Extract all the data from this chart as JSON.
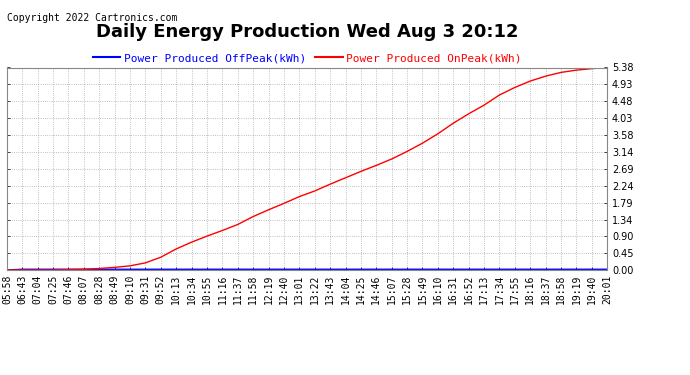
{
  "title": "Daily Energy Production Wed Aug 3 20:12",
  "copyright": "Copyright 2022 Cartronics.com",
  "legend_offpeak": "Power Produced OffPeak(kWh)",
  "legend_onpeak": "Power Produced OnPeak(kWh)",
  "color_offpeak": "#0000ff",
  "color_onpeak": "#ff0000",
  "bg_color": "#ffffff",
  "grid_color": "#aaaaaa",
  "ymin": 0.0,
  "ymax": 5.38,
  "yticks": [
    0.0,
    0.45,
    0.9,
    1.34,
    1.79,
    2.24,
    2.69,
    3.14,
    3.58,
    4.03,
    4.48,
    4.93,
    5.38
  ],
  "xtick_labels": [
    "05:58",
    "06:43",
    "07:04",
    "07:25",
    "07:46",
    "08:07",
    "08:28",
    "08:49",
    "09:10",
    "09:31",
    "09:52",
    "10:13",
    "10:34",
    "10:55",
    "11:16",
    "11:37",
    "11:58",
    "12:19",
    "12:40",
    "13:01",
    "13:22",
    "13:43",
    "14:04",
    "14:25",
    "14:46",
    "15:07",
    "15:28",
    "15:49",
    "16:10",
    "16:31",
    "16:52",
    "17:13",
    "17:34",
    "17:55",
    "18:16",
    "18:37",
    "18:58",
    "19:19",
    "19:40",
    "20:01"
  ],
  "onpeak_y": [
    0.0,
    0.0,
    0.0,
    0.0,
    0.01,
    0.02,
    0.04,
    0.07,
    0.11,
    0.19,
    0.34,
    0.56,
    0.74,
    0.9,
    1.05,
    1.21,
    1.42,
    1.6,
    1.77,
    1.95,
    2.1,
    2.28,
    2.45,
    2.62,
    2.78,
    2.95,
    3.15,
    3.37,
    3.62,
    3.9,
    4.15,
    4.38,
    4.65,
    4.85,
    5.02,
    5.15,
    5.25,
    5.31,
    5.35,
    5.38
  ],
  "offpeak_y": [
    0.0,
    0.02,
    0.02,
    0.02,
    0.02,
    0.02,
    0.02,
    0.02,
    0.02,
    0.02,
    0.02,
    0.02,
    0.02,
    0.02,
    0.02,
    0.02,
    0.02,
    0.02,
    0.02,
    0.02,
    0.02,
    0.02,
    0.02,
    0.02,
    0.02,
    0.02,
    0.02,
    0.02,
    0.02,
    0.02,
    0.02,
    0.02,
    0.02,
    0.02,
    0.02,
    0.02,
    0.02,
    0.02,
    0.02,
    0.02
  ],
  "title_fontsize": 13,
  "tick_label_fontsize": 7,
  "legend_fontsize": 8,
  "copyright_fontsize": 7
}
